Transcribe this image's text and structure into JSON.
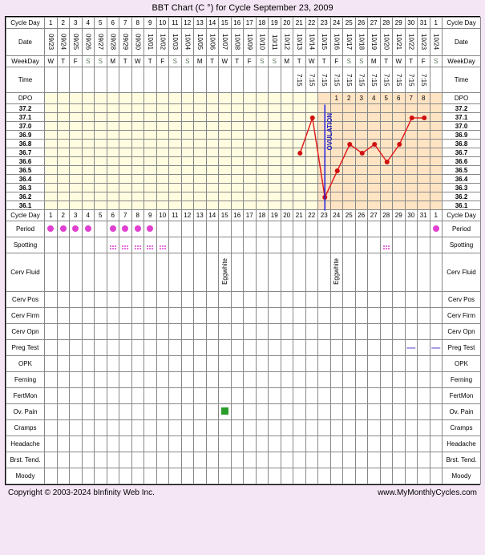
{
  "title": "BBT Chart (C °) for Cycle September 23, 2009",
  "labels": {
    "cycleDay": "Cycle Day",
    "date": "Date",
    "weekday": "WeekDay",
    "time": "Time",
    "dpo": "DPO",
    "period": "Period",
    "spotting": "Spotting",
    "cervFluid": "Cerv Fluid",
    "cervPos": "Cerv Pos",
    "cervFirm": "Cerv Firm",
    "cervOpn": "Cerv Opn",
    "pregTest": "Preg Test",
    "opk": "OPK",
    "ferning": "Ferning",
    "fertMon": "FertMon",
    "ovPain": "Ov. Pain",
    "cramps": "Cramps",
    "headache": "Headache",
    "brstTend": "Brst. Tend.",
    "moody": "Moody",
    "ovulation": "OVULATION",
    "eggwhite": "Eggwhite"
  },
  "cycleDays": [
    1,
    2,
    3,
    4,
    5,
    6,
    7,
    8,
    9,
    10,
    11,
    12,
    13,
    14,
    15,
    16,
    17,
    18,
    19,
    20,
    21,
    22,
    23,
    24,
    25,
    26,
    27,
    28,
    29,
    30,
    31,
    1
  ],
  "dates": [
    "09/23",
    "09/24",
    "09/25",
    "09/26",
    "09/27",
    "09/28",
    "09/29",
    "09/30",
    "10/01",
    "10/02",
    "10/03",
    "10/04",
    "10/05",
    "10/06",
    "10/07",
    "10/08",
    "10/09",
    "10/10",
    "10/11",
    "10/12",
    "10/13",
    "10/14",
    "10/15",
    "10/16",
    "10/17",
    "10/18",
    "10/19",
    "10/20",
    "10/21",
    "10/22",
    "10/23",
    "10/24"
  ],
  "weekdays": [
    "W",
    "T",
    "F",
    "S",
    "S",
    "M",
    "T",
    "W",
    "T",
    "F",
    "S",
    "S",
    "M",
    "T",
    "W",
    "T",
    "F",
    "S",
    "S",
    "M",
    "T",
    "W",
    "T",
    "F",
    "S",
    "S",
    "M",
    "T",
    "W",
    "T",
    "F",
    "S"
  ],
  "weekendIdx": [
    3,
    4,
    10,
    11,
    17,
    18,
    24,
    25,
    31
  ],
  "times": {
    "20": "7:15",
    "21": "7:15",
    "22": "7:15",
    "23": "7:15",
    "24": "7:15",
    "25": "7:15",
    "26": "7:15",
    "27": "7:15",
    "28": "7:15",
    "29": "7:15",
    "30": "7:15"
  },
  "dpo": {
    "22": "",
    "23": "1",
    "24": "2",
    "25": "3",
    "26": "4",
    "27": "5",
    "28": "6",
    "29": "7",
    "30": "8"
  },
  "tempScale": [
    37.2,
    37.1,
    37.0,
    36.9,
    36.8,
    36.7,
    36.6,
    36.5,
    36.4,
    36.3,
    36.2,
    36.1
  ],
  "tempData": {
    "20": 36.7,
    "21": 37.1,
    "22": 36.2,
    "23": 36.5,
    "24": 36.8,
    "25": 36.7,
    "26": 36.8,
    "27": 36.6,
    "28": 36.8,
    "29": 37.1,
    "30": 37.1
  },
  "ovulationDay": 22,
  "lutealStart": 22,
  "periodDays": [
    0,
    1,
    2,
    3,
    5,
    6,
    7,
    8,
    31
  ],
  "spottingDays": [
    5,
    6,
    7,
    8,
    9,
    27
  ],
  "cervFluidEggwhite": [
    14,
    23
  ],
  "pregTestDays": [
    29,
    31
  ],
  "ovPainDays": [
    14
  ],
  "colors": {
    "lineColor": "#e02020",
    "pointColor": "#d01010",
    "ovLine": "#2020e0",
    "lutealBg": "#ffe4c4",
    "preBg": "#fffce0",
    "periodDot": "#e040d0",
    "ovPain": "#2a9c2a",
    "pregMark": "#6050d0"
  },
  "footer": {
    "copyright": "Copyright © 2003-2024 bInfinity Web Inc.",
    "url": "www.MyMonthlyCycles.com"
  },
  "layout": {
    "labelColW": 48,
    "dayColW": 15.5,
    "tempRowH": 11,
    "chartTopOffset": 119
  }
}
